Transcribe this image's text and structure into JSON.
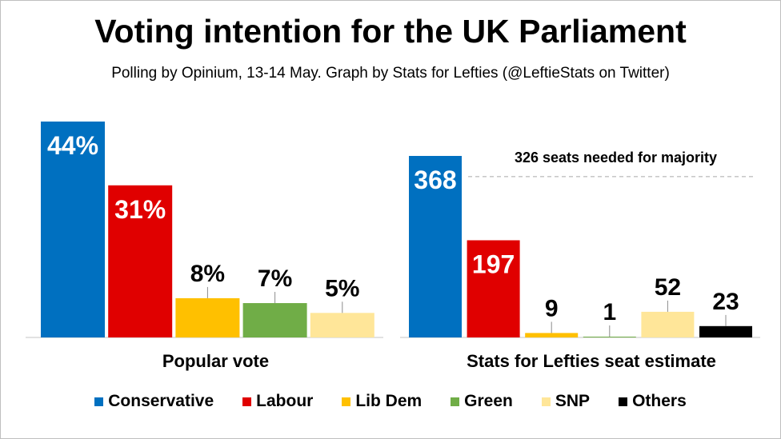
{
  "title": "Voting intention for the UK Parliament",
  "subtitle": "Polling by Opinium, 13-14 May. Graph by Stats for Lefties (@LeftieStats on Twitter)",
  "parties": [
    {
      "name": "Conservative",
      "color": "#0070C0"
    },
    {
      "name": "Labour",
      "color": "#E00000"
    },
    {
      "name": "Lib Dem",
      "color": "#FFC000"
    },
    {
      "name": "Green",
      "color": "#70AD47"
    },
    {
      "name": "SNP",
      "color": "#FFE699"
    },
    {
      "name": "Others",
      "color": "#000000"
    }
  ],
  "chart_data": [
    {
      "type": "bar",
      "xlabel": "Popular vote",
      "categories": [
        "Conservative",
        "Labour",
        "Lib Dem",
        "Green",
        "SNP"
      ],
      "values": [
        44,
        31,
        8,
        7,
        5
      ],
      "data_labels": [
        "44%",
        "31%",
        "8%",
        "7%",
        "5%"
      ],
      "ylim": [
        0,
        44
      ]
    },
    {
      "type": "bar",
      "xlabel": "Stats for Lefties seat estimate",
      "categories": [
        "Conservative",
        "Labour",
        "Lib Dem",
        "Green",
        "SNP",
        "Others"
      ],
      "values": [
        368,
        197,
        9,
        1,
        52,
        23
      ],
      "data_labels": [
        "368",
        "197",
        "9",
        "1",
        "52",
        "23"
      ],
      "ylim": [
        0,
        368
      ],
      "reference_line": {
        "value": 326,
        "label": "326 seats needed for majority"
      }
    }
  ]
}
